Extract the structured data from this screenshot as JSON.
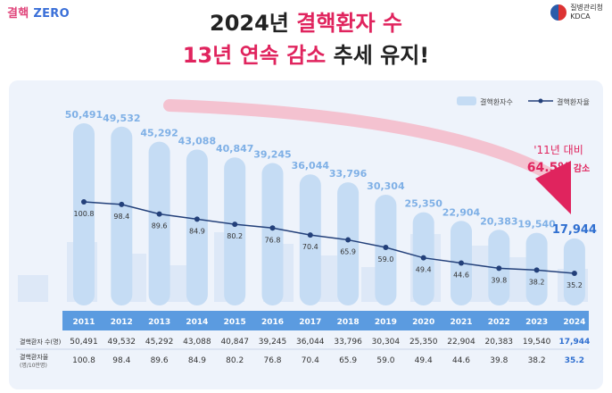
{
  "header": {
    "logo_left_a": "결핵",
    "logo_left_b": "ZERO",
    "logo_right_a": "질병관리청",
    "logo_right_b": "KDCA",
    "title_line1_a": "2024년 ",
    "title_line1_b": "결핵환자 수",
    "title_line2_a": "13년 연속 감소",
    "title_line2_b": " 추세 유지!"
  },
  "legend": {
    "bar": "결핵환자수",
    "line": "결핵환자율"
  },
  "annotation": {
    "line1": "'11년 대비",
    "line2_value": "64.5%",
    "line2_suffix": " 감소"
  },
  "table": {
    "row1_label": "결핵환자 수(명)",
    "row2_label": "결핵환자율",
    "row2_sublabel": "(명/10만명)"
  },
  "colors": {
    "bar": "#c5dcf4",
    "line": "#23407a",
    "accent": "#e0245e",
    "year_band": "#5b9be0"
  },
  "chart_data": {
    "type": "bar",
    "categories": [
      "2011",
      "2012",
      "2013",
      "2014",
      "2015",
      "2016",
      "2017",
      "2018",
      "2019",
      "2020",
      "2021",
      "2022",
      "2023",
      "2024"
    ],
    "series": [
      {
        "name": "결핵환자수",
        "values": [
          50491,
          49532,
          45292,
          43088,
          40847,
          39245,
          36044,
          33796,
          30304,
          25350,
          22904,
          20383,
          19540,
          17944
        ]
      },
      {
        "name": "결핵환자율",
        "values": [
          100.8,
          98.4,
          89.6,
          84.9,
          80.2,
          76.8,
          70.4,
          65.9,
          59.0,
          49.4,
          44.6,
          39.8,
          38.2,
          35.2
        ]
      }
    ],
    "count_labels": [
      "50,491",
      "49,532",
      "45,292",
      "43,088",
      "40,847",
      "39,245",
      "36,044",
      "33,796",
      "30,304",
      "25,350",
      "22,904",
      "20,383",
      "19,540",
      "17,944"
    ],
    "rate_labels": [
      "100.8",
      "98.4",
      "89.6",
      "84.9",
      "80.2",
      "76.8",
      "70.4",
      "65.9",
      "59.0",
      "49.4",
      "44.6",
      "39.8",
      "38.2",
      "35.2"
    ]
  }
}
